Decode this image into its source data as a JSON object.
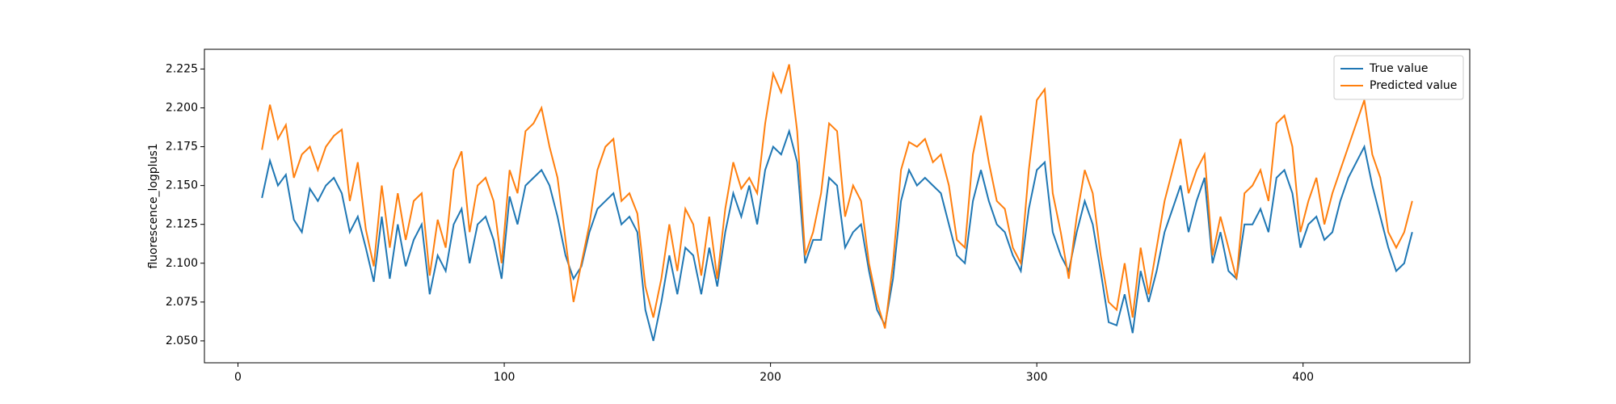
{
  "chart_data": {
    "type": "line",
    "ylabel": "fluorescence_logplus1",
    "x": [
      9,
      12,
      15,
      18,
      21,
      24,
      27,
      30,
      33,
      36,
      39,
      42,
      45,
      48,
      51,
      54,
      57,
      60,
      63,
      66,
      69,
      72,
      75,
      78,
      81,
      84,
      87,
      90,
      93,
      96,
      99,
      102,
      105,
      108,
      111,
      114,
      117,
      120,
      123,
      126,
      129,
      132,
      135,
      138,
      141,
      144,
      147,
      150,
      153,
      156,
      159,
      162,
      165,
      168,
      171,
      174,
      177,
      180,
      183,
      186,
      189,
      192,
      195,
      198,
      201,
      204,
      207,
      210,
      213,
      216,
      219,
      222,
      225,
      228,
      231,
      234,
      237,
      240,
      243,
      246,
      249,
      252,
      255,
      258,
      261,
      264,
      267,
      270,
      273,
      276,
      279,
      282,
      285,
      288,
      291,
      294,
      297,
      300,
      303,
      306,
      309,
      312,
      315,
      318,
      321,
      324,
      327,
      330,
      333,
      336,
      339,
      342,
      345,
      348,
      351,
      354,
      357,
      360,
      363,
      366,
      369,
      372,
      375,
      378,
      381,
      384,
      387,
      390,
      393,
      396,
      399,
      402,
      405,
      408,
      411,
      414,
      417,
      420,
      423,
      426,
      429,
      432,
      435,
      438,
      441
    ],
    "series": [
      {
        "name": "True value",
        "color": "#1f77b4",
        "values": [
          2.142,
          2.166,
          2.15,
          2.157,
          2.128,
          2.12,
          2.148,
          2.14,
          2.15,
          2.155,
          2.145,
          2.12,
          2.13,
          2.11,
          2.088,
          2.13,
          2.09,
          2.125,
          2.098,
          2.115,
          2.125,
          2.08,
          2.105,
          2.095,
          2.125,
          2.135,
          2.1,
          2.125,
          2.13,
          2.115,
          2.09,
          2.143,
          2.125,
          2.15,
          2.155,
          2.16,
          2.15,
          2.13,
          2.105,
          2.09,
          2.098,
          2.12,
          2.135,
          2.14,
          2.145,
          2.125,
          2.13,
          2.12,
          2.07,
          2.05,
          2.075,
          2.105,
          2.08,
          2.11,
          2.105,
          2.08,
          2.11,
          2.085,
          2.12,
          2.145,
          2.13,
          2.15,
          2.125,
          2.16,
          2.175,
          2.17,
          2.185,
          2.165,
          2.1,
          2.115,
          2.115,
          2.155,
          2.15,
          2.11,
          2.12,
          2.125,
          2.095,
          2.07,
          2.06,
          2.09,
          2.14,
          2.16,
          2.15,
          2.155,
          2.15,
          2.145,
          2.125,
          2.105,
          2.1,
          2.14,
          2.16,
          2.14,
          2.125,
          2.12,
          2.105,
          2.095,
          2.135,
          2.16,
          2.165,
          2.12,
          2.105,
          2.095,
          2.12,
          2.14,
          2.125,
          2.095,
          2.062,
          2.06,
          2.08,
          2.055,
          2.095,
          2.075,
          2.095,
          2.12,
          2.135,
          2.15,
          2.12,
          2.14,
          2.155,
          2.1,
          2.12,
          2.095,
          2.09,
          2.125,
          2.125,
          2.135,
          2.12,
          2.155,
          2.16,
          2.145,
          2.11,
          2.125,
          2.13,
          2.115,
          2.12,
          2.14,
          2.155,
          2.165,
          2.175,
          2.15,
          2.13,
          2.11,
          2.095,
          2.1,
          2.12
        ]
      },
      {
        "name": "Predicted value",
        "color": "#ff7f0e",
        "values": [
          2.173,
          2.202,
          2.18,
          2.189,
          2.155,
          2.17,
          2.175,
          2.16,
          2.175,
          2.182,
          2.186,
          2.14,
          2.165,
          2.122,
          2.098,
          2.15,
          2.11,
          2.145,
          2.115,
          2.14,
          2.145,
          2.092,
          2.128,
          2.11,
          2.16,
          2.172,
          2.12,
          2.15,
          2.155,
          2.14,
          2.1,
          2.16,
          2.145,
          2.185,
          2.19,
          2.2,
          2.175,
          2.155,
          2.115,
          2.075,
          2.1,
          2.125,
          2.16,
          2.175,
          2.18,
          2.14,
          2.145,
          2.132,
          2.085,
          2.065,
          2.09,
          2.125,
          2.095,
          2.135,
          2.125,
          2.092,
          2.13,
          2.09,
          2.135,
          2.165,
          2.148,
          2.155,
          2.145,
          2.19,
          2.222,
          2.21,
          2.228,
          2.185,
          2.105,
          2.12,
          2.145,
          2.19,
          2.185,
          2.13,
          2.15,
          2.14,
          2.1,
          2.075,
          2.058,
          2.1,
          2.16,
          2.178,
          2.175,
          2.18,
          2.165,
          2.17,
          2.15,
          2.115,
          2.11,
          2.17,
          2.195,
          2.165,
          2.14,
          2.135,
          2.11,
          2.1,
          2.16,
          2.205,
          2.212,
          2.145,
          2.12,
          2.09,
          2.13,
          2.16,
          2.145,
          2.105,
          2.075,
          2.07,
          2.1,
          2.065,
          2.11,
          2.08,
          2.11,
          2.14,
          2.16,
          2.18,
          2.145,
          2.16,
          2.17,
          2.105,
          2.13,
          2.11,
          2.09,
          2.145,
          2.15,
          2.16,
          2.14,
          2.19,
          2.195,
          2.175,
          2.12,
          2.14,
          2.155,
          2.125,
          2.145,
          2.16,
          2.175,
          2.19,
          2.205,
          2.17,
          2.155,
          2.12,
          2.11,
          2.12,
          2.14
        ]
      }
    ],
    "xlim": [
      -12.6,
      462.6
    ],
    "xticks": [
      0,
      100,
      200,
      300,
      400
    ],
    "ylim": [
      2.0359,
      2.2377
    ],
    "yticks": [
      {
        "value": 2.05,
        "label": "2.050"
      },
      2.075,
      {
        "value": 2.1,
        "label": "2.100"
      },
      2.125,
      {
        "value": 2.15,
        "label": "2.150"
      },
      2.175,
      {
        "value": 2.2,
        "label": "2.200"
      },
      2.225
    ],
    "legend": "upper right"
  }
}
